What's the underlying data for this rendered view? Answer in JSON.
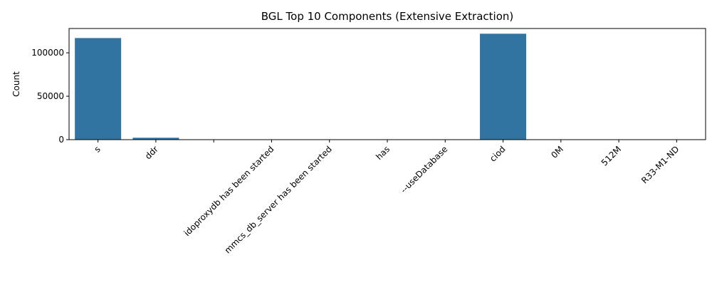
{
  "chart_data": {
    "type": "bar",
    "title": "BGL Top 10 Components (Extensive Extraction)",
    "xlabel": "",
    "ylabel": "Count",
    "categories": [
      "s",
      "ddr",
      "",
      "idoproxydb has been started",
      "mmcs_db_server has been started",
      "has",
      "--useDatabase",
      "ciod",
      "0M",
      "512M",
      "R33-M1-ND"
    ],
    "values": [
      117000,
      2200,
      0,
      0,
      0,
      0,
      0,
      122000,
      0,
      0,
      0
    ],
    "ylim": [
      0,
      128000
    ],
    "yticks": [
      0,
      50000,
      100000
    ],
    "bar_color": "#3274a1",
    "grid": false,
    "legend": "none"
  }
}
